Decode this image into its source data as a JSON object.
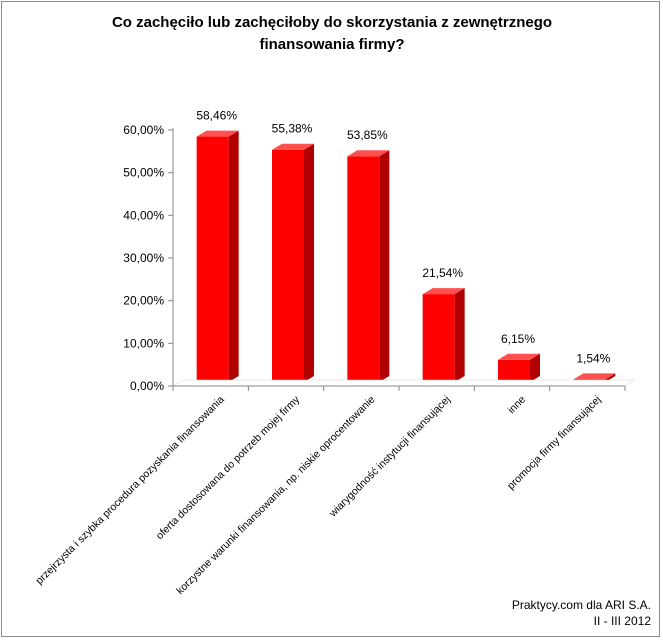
{
  "chart_data": {
    "type": "bar",
    "title_line1": "Co zachęciło lub zachęciłoby do skorzystania z zewnętrznego",
    "title_line2": "finansowania firmy?",
    "xlabel": "",
    "ylabel": "",
    "ylim": [
      0,
      60
    ],
    "y_ticks": [
      0,
      10,
      20,
      30,
      40,
      50,
      60
    ],
    "y_tick_labels": [
      "0,00%",
      "10,00%",
      "20,00%",
      "30,00%",
      "40,00%",
      "50,00%",
      "60,00%"
    ],
    "grid": false,
    "legend": "none",
    "categories": [
      "przejrzysta i szybka procedura pozyskania finansowania",
      "oferta dostosowana do potrzeb mojej firmy",
      "korzystne warunki finansowania, np. niskie oprocentowanie",
      "wiarygodność instytucji finansującej",
      "inne",
      "promocja firmy finansującej"
    ],
    "values": [
      58.46,
      55.38,
      53.85,
      21.54,
      6.15,
      1.54
    ],
    "data_labels": [
      "58,46%",
      "55,38%",
      "53,85%",
      "21,54%",
      "6,15%",
      "1,54%"
    ],
    "colors": {
      "bar_front": "#ff0000",
      "bar_side": "#b00000",
      "bar_top": "#ff5050",
      "axis": "#868686"
    }
  },
  "source": {
    "line1": "Praktycy.com dla ARI S.A.",
    "line2": "II - III 2012"
  }
}
